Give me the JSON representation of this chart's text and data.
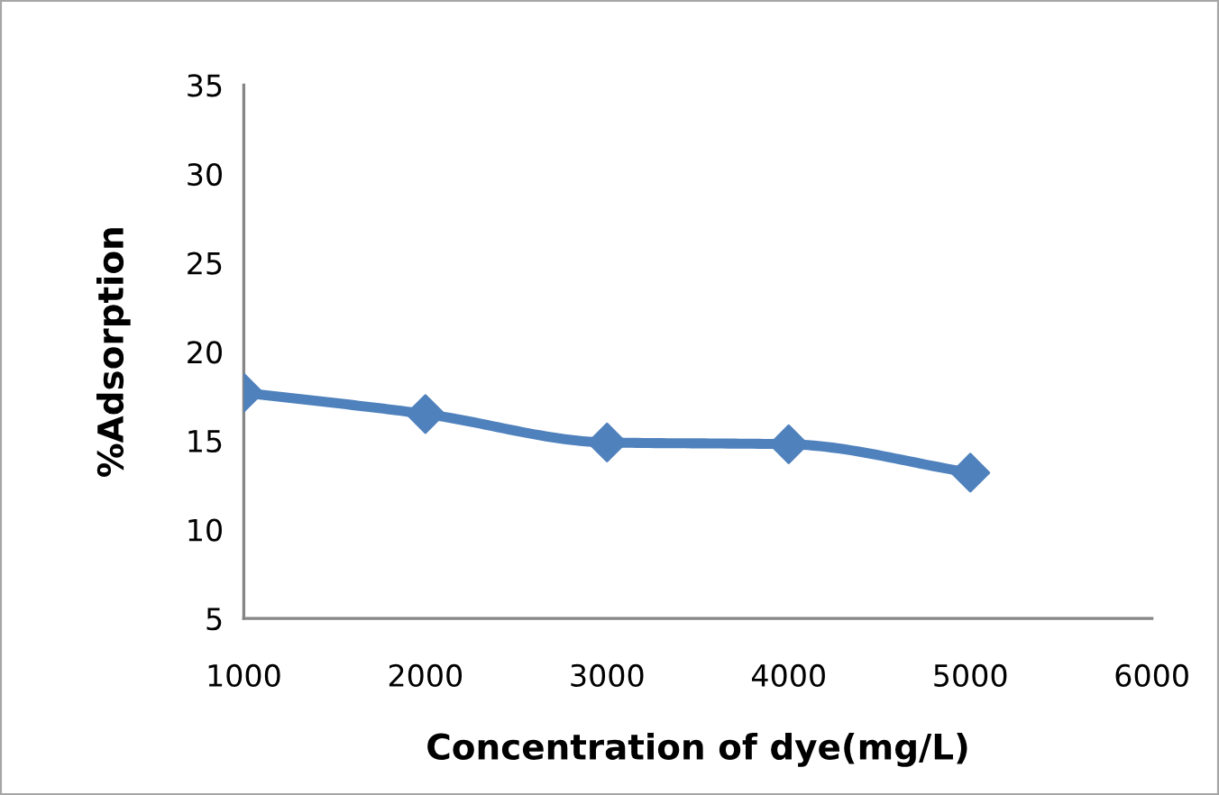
{
  "chart_data": {
    "type": "line",
    "xlabel": "Concentration of dye(mg/L)",
    "ylabel": "%Adsorption",
    "x": [
      1000,
      2000,
      3000,
      4000,
      5000
    ],
    "series": [
      {
        "color": "#4f81bd",
        "values": [
          17.7,
          16.5,
          14.9,
          14.8,
          13.2
        ]
      }
    ],
    "xlim": [
      1000,
      6000
    ],
    "xticks": [
      1000,
      2000,
      3000,
      4000,
      5000,
      6000
    ],
    "ylim": [
      5,
      35
    ],
    "yticks": [
      5,
      10,
      15,
      20,
      25,
      30,
      35
    ],
    "grid": false,
    "legend": false,
    "marker": "diamond",
    "line_style": "solid"
  }
}
